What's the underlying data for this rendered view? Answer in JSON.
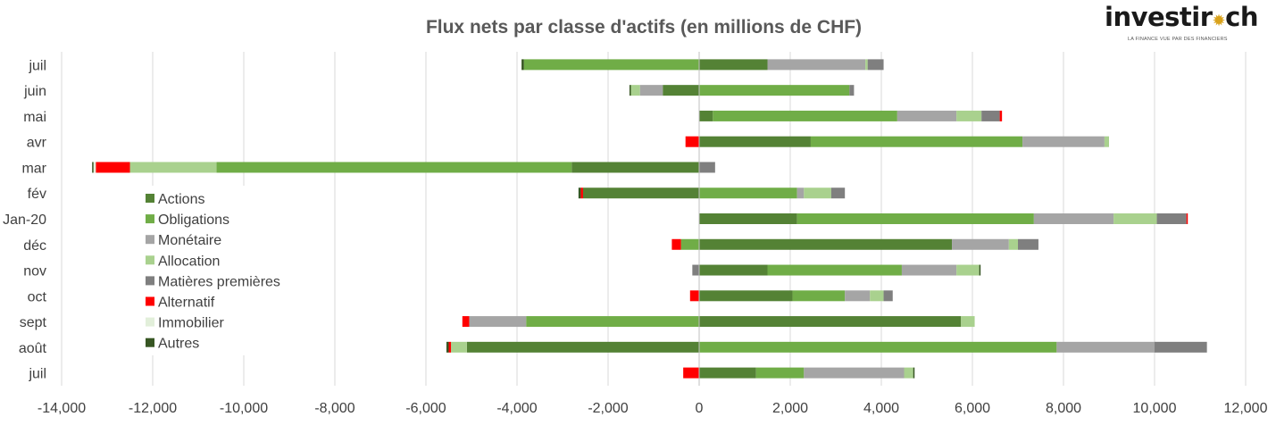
{
  "logo": {
    "text_before": "investir",
    "star": "✹",
    "text_after": "ch",
    "tagline": "LA FINANCE VUE PAR DES FINANCIERS"
  },
  "chart_data": {
    "type": "bar",
    "orientation": "horizontal",
    "stacked": true,
    "title": "Flux nets par classe d'actifs (en millions de CHF)",
    "xlabel": "",
    "ylabel": "",
    "xlim": [
      -14000,
      12000
    ],
    "x_ticks": [
      -14000,
      -12000,
      -10000,
      -8000,
      -6000,
      -4000,
      -2000,
      0,
      2000,
      4000,
      6000,
      8000,
      10000,
      12000
    ],
    "x_tick_labels": [
      "-14,000",
      "-12,000",
      "-10,000",
      "-8,000",
      "-6,000",
      "-4,000",
      "-2,000",
      "0",
      "2,000",
      "4,000",
      "6,000",
      "8,000",
      "10,000",
      "12,000"
    ],
    "grid": "vertical",
    "legend_position": "left-inside",
    "categories": [
      "juil",
      "juin",
      "mai",
      "avr",
      "mar",
      "fév",
      "Jan-20",
      "déc",
      "nov",
      "oct",
      "sept",
      "août",
      "juil"
    ],
    "series": [
      {
        "name": "Actions",
        "color": "#548235",
        "values": [
          1500,
          -800,
          300,
          2450,
          -2800,
          -2550,
          2150,
          5550,
          1500,
          2050,
          5750,
          -5100,
          1250
        ]
      },
      {
        "name": "Obligations",
        "color": "#70ad47",
        "values": [
          -3850,
          3300,
          4050,
          4650,
          -7800,
          2150,
          5200,
          -400,
          2950,
          1150,
          -3800,
          7850,
          1050
        ]
      },
      {
        "name": "Monétaire",
        "color": "#a5a5a5",
        "values": [
          2150,
          -500,
          1300,
          1800,
          0,
          150,
          1750,
          1250,
          1200,
          550,
          -1250,
          2150,
          2200
        ]
      },
      {
        "name": "Allocation",
        "color": "#a9d18e",
        "values": [
          50,
          -200,
          550,
          100,
          -1900,
          600,
          950,
          200,
          500,
          300,
          300,
          -350,
          200
        ]
      },
      {
        "name": "Matières premières",
        "color": "#7f7f7f",
        "values": [
          350,
          100,
          400,
          0,
          350,
          300,
          650,
          450,
          -150,
          200,
          0,
          1150,
          0
        ]
      },
      {
        "name": "Alternatif",
        "color": "#ff0000",
        "values": [
          0,
          0,
          50,
          -300,
          -750,
          -50,
          30,
          -200,
          0,
          -200,
          -150,
          -50,
          -350
        ]
      },
      {
        "name": "Immobilier",
        "color": "#e2efda",
        "values": [
          0,
          0,
          0,
          0,
          -50,
          0,
          0,
          0,
          0,
          0,
          0,
          0,
          0
        ]
      },
      {
        "name": "Autres",
        "color": "#375623",
        "values": [
          -50,
          -30,
          0,
          0,
          -30,
          -50,
          0,
          0,
          30,
          0,
          0,
          -50,
          30
        ]
      }
    ]
  }
}
